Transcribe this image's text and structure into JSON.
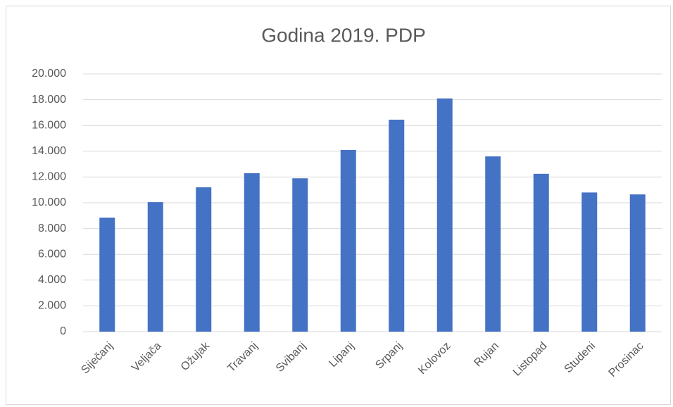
{
  "chart_data": {
    "type": "bar",
    "title": "Godina 2019. PDP",
    "categories": [
      "Siječanj",
      "Veljača",
      "Ožujak",
      "Travanj",
      "Svibanj",
      "Lipanj",
      "Srpanj",
      "Kolovoz",
      "Rujan",
      "Listopad",
      "Studeni",
      "Prosinac"
    ],
    "values": [
      8850,
      10050,
      11200,
      12300,
      11900,
      14100,
      16450,
      18100,
      13600,
      12250,
      10800,
      10650
    ],
    "color": "#4472c4",
    "ylim": [
      0,
      20000
    ],
    "yticks": [
      0,
      {
        "value": 2000,
        "label": "2.000"
      },
      {
        "value": 4000,
        "label": "4.000"
      },
      {
        "value": 6000,
        "label": "6.000"
      },
      {
        "value": 8000,
        "label": "8.000"
      },
      {
        "value": 10000,
        "label": "10.000"
      },
      {
        "value": 12000,
        "label": "12.000"
      },
      {
        "value": 14000,
        "label": "14.000"
      },
      {
        "value": 16000,
        "label": "16.000"
      },
      {
        "value": 18000,
        "label": "18.000"
      },
      {
        "value": 20000,
        "label": "20.000"
      }
    ],
    "grid": true
  }
}
